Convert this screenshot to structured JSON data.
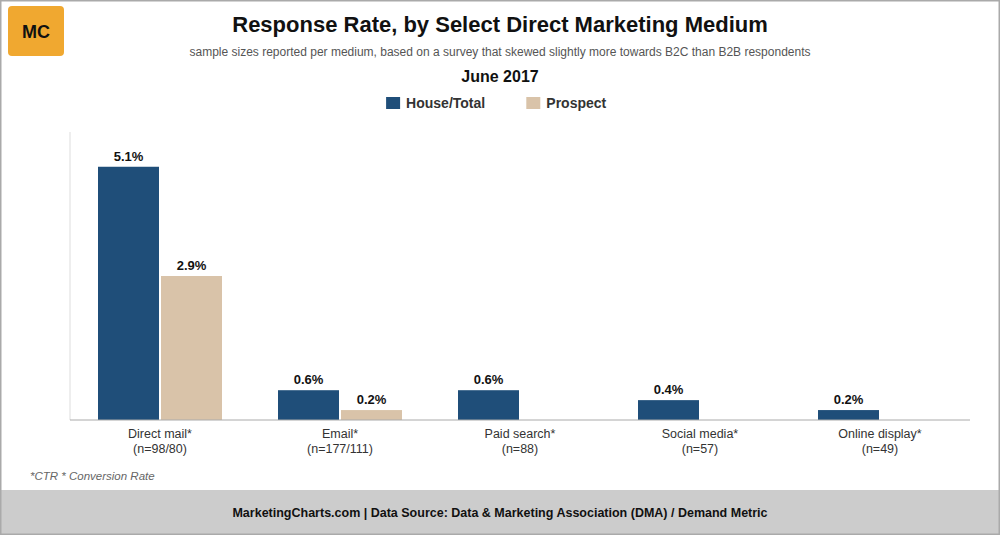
{
  "chart_data": {
    "type": "bar",
    "title": "Response Rate, by Select Direct Marketing Medium",
    "subtitle": "sample sizes reported per medium, based on a survey that skewed slightly more towards B2C than B2B respondents",
    "period": "June 2017",
    "footnote": "*CTR * Conversion Rate",
    "footer": "MarketingCharts.com | Data Source: Data & Marketing Association (DMA) / Demand Metric",
    "logo": "MC",
    "categories": [
      "Direct mail*\n(n=98/80)",
      "Email*\n(n=177/111)",
      "Paid search*\n(n=88)",
      "Social media*\n(n=57)",
      "Online display*\n(n=49)"
    ],
    "series": [
      {
        "name": "House/Total",
        "color": "#1F4E79",
        "values": [
          5.1,
          0.6,
          0.6,
          0.4,
          0.2
        ],
        "value_labels": [
          "5.1%",
          "0.6%",
          "0.6%",
          "0.4%",
          "0.2%"
        ]
      },
      {
        "name": "Prospect",
        "color": "#D9C3A9",
        "values": [
          2.9,
          0.2,
          null,
          null,
          null
        ],
        "value_labels": [
          "2.9%",
          "0.2%",
          null,
          null,
          null
        ]
      }
    ],
    "ylim": [
      0,
      5.8
    ],
    "grid": false,
    "legend": "top",
    "data_labels": true,
    "tick_labels": "x"
  }
}
